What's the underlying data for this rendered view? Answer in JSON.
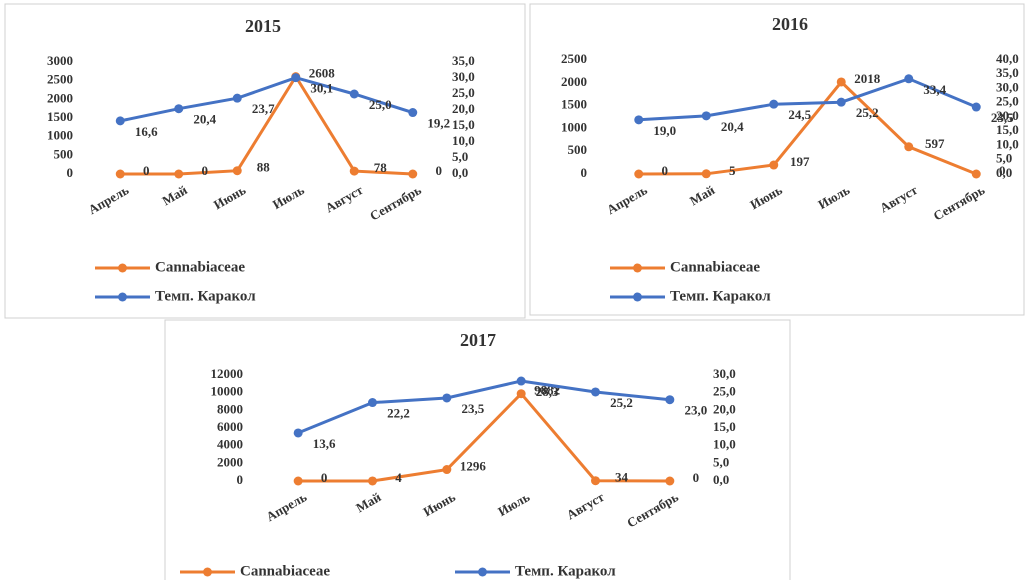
{
  "chart_data": [
    {
      "type": "line",
      "title": "2015",
      "categories": [
        "Апрель",
        "Май",
        "Июнь",
        "Июль",
        "Август",
        "Сентябрь"
      ],
      "series": [
        {
          "name": "Cannabiaceae",
          "color": "#ed7d31",
          "values": [
            0,
            0,
            88,
            2608,
            78,
            0
          ]
        },
        {
          "name": "Темп. Каракол",
          "color": "#4472c4",
          "axis": "y2",
          "values": [
            16.6,
            20.4,
            23.7,
            30.1,
            25.0,
            19.2
          ],
          "value_labels": [
            "16,6",
            "20,4",
            "23,7",
            "30,1",
            "25,0",
            "19,2"
          ]
        }
      ],
      "ylim": [
        0,
        3000
      ],
      "yticks": [
        0,
        500,
        1000,
        1500,
        2000,
        2500,
        3000
      ],
      "y2lim": [
        0,
        35
      ],
      "y2ticks": [
        {
          "value": 0,
          "label": "0,0"
        },
        {
          "value": 5,
          "label": "5,0"
        },
        {
          "value": 10,
          "label": "10,0"
        },
        {
          "value": 15,
          "label": "15,0"
        },
        {
          "value": 20,
          "label": "20,0"
        },
        {
          "value": 25,
          "label": "25,0"
        },
        {
          "value": 30,
          "label": "30,0"
        },
        {
          "value": 35,
          "label": "35,0"
        }
      ],
      "legend": "bottom"
    },
    {
      "type": "line",
      "title": "2016",
      "categories": [
        "Апрель",
        "Май",
        "Июнь",
        "Июль",
        "Август",
        "Сентябрь"
      ],
      "series": [
        {
          "name": "Cannabiaceae",
          "color": "#ed7d31",
          "values": [
            0,
            5,
            197,
            2018,
            597,
            0
          ]
        },
        {
          "name": "Темп. Каракол",
          "color": "#4472c4",
          "axis": "y2",
          "values": [
            19.0,
            20.4,
            24.5,
            25.2,
            33.4,
            23.5
          ],
          "value_labels": [
            "19,0",
            "20,4",
            "24,5",
            "25,2",
            "33,4",
            "23,5"
          ]
        }
      ],
      "ylim": [
        0,
        2500
      ],
      "yticks": [
        0,
        500,
        1000,
        1500,
        2000,
        2500
      ],
      "y2lim": [
        0,
        40
      ],
      "y2ticks": [
        {
          "value": 0,
          "label": "0,0"
        },
        {
          "value": 5,
          "label": "5,0"
        },
        {
          "value": 10,
          "label": "10,0"
        },
        {
          "value": 15,
          "label": "15,0"
        },
        {
          "value": 20,
          "label": "20,0"
        },
        {
          "value": 25,
          "label": "25,0"
        },
        {
          "value": 30,
          "label": "30,0"
        },
        {
          "value": 35,
          "label": "35,0"
        },
        {
          "value": 40,
          "label": "40,0"
        }
      ],
      "legend": "bottom"
    },
    {
      "type": "line",
      "title": "2017",
      "categories": [
        "Апрель",
        "Май",
        "Июнь",
        "Июль",
        "Август",
        "Сентябрь"
      ],
      "series": [
        {
          "name": "Cannabiaceae",
          "color": "#ed7d31",
          "values": [
            0,
            4,
            1296,
            9882,
            34,
            0
          ]
        },
        {
          "name": "Темп. Каракол",
          "color": "#4472c4",
          "axis": "y2",
          "values": [
            13.6,
            22.2,
            23.5,
            28.3,
            25.2,
            23.0
          ],
          "value_labels": [
            "13,6",
            "22,2",
            "23,5",
            "28,3",
            "25,2",
            "23,0"
          ]
        }
      ],
      "ylim": [
        0,
        12000
      ],
      "yticks": [
        0,
        2000,
        4000,
        6000,
        8000,
        10000,
        12000
      ],
      "y2lim": [
        0,
        30
      ],
      "y2ticks": [
        {
          "value": 0,
          "label": "0,0"
        },
        {
          "value": 5,
          "label": "5,0"
        },
        {
          "value": 10,
          "label": "10,0"
        },
        {
          "value": 15,
          "label": "15,0"
        },
        {
          "value": 20,
          "label": "20,0"
        },
        {
          "value": 25,
          "label": "25,0"
        },
        {
          "value": 30,
          "label": "30,0"
        }
      ],
      "legend": "bottom"
    }
  ]
}
